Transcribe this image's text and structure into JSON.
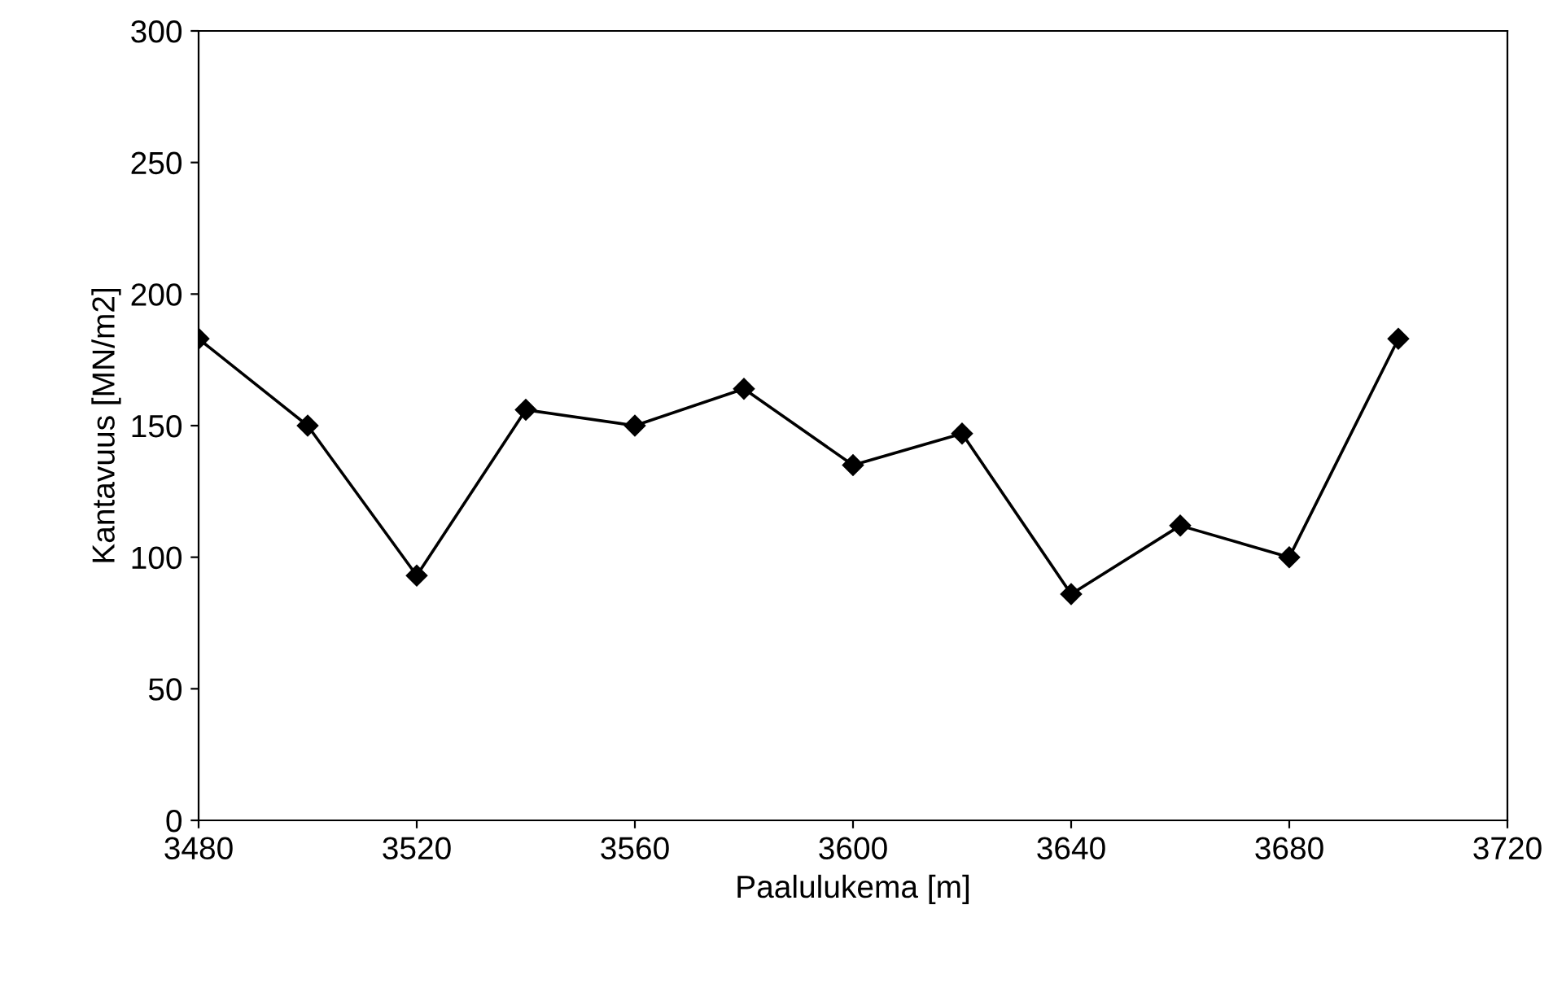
{
  "chart_data": {
    "type": "line",
    "xlabel": "Paalulukema [m]",
    "ylabel": "Kantavuus [MN/m2]",
    "x": [
      3480,
      3500,
      3520,
      3540,
      3560,
      3580,
      3600,
      3620,
      3640,
      3660,
      3680,
      3700
    ],
    "series": [
      {
        "color": "#000000",
        "values": [
          183,
          150,
          93,
          156,
          150,
          164,
          135,
          147,
          86,
          112,
          100,
          183
        ]
      }
    ],
    "xlim": [
      3480,
      3720
    ],
    "xticks": [
      3480,
      3520,
      3560,
      3600,
      3640,
      3680,
      3720
    ],
    "ylim": [
      0,
      300
    ],
    "yticks": [
      0,
      50,
      100,
      150,
      200,
      250,
      300
    ],
    "marker": "diamond",
    "line_style": "solid",
    "grid": false,
    "legend": false
  }
}
